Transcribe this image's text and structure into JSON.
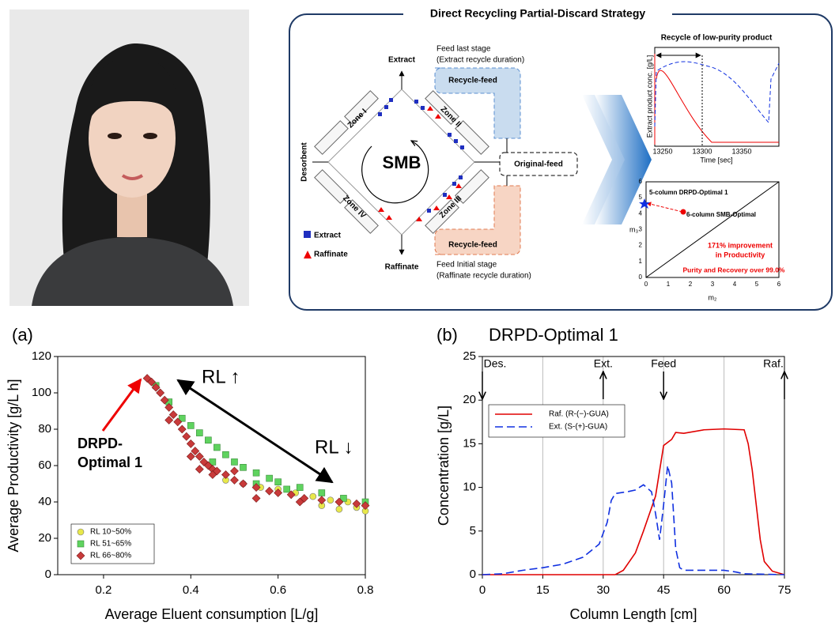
{
  "diagram": {
    "title": "Direct Recycling Partial-Discard Strategy",
    "extract_port": "Extract",
    "feed_last": [
      "Feed last stage",
      "(Extract recycle duration)"
    ],
    "recycle_feed_top": "Recycle-feed",
    "zones": [
      "Zone I",
      "Zone II",
      "Zone III",
      "Zone IV"
    ],
    "smb": "SMB",
    "desorbent": "Desorbent",
    "original_feed": "Original-feed",
    "recycle_feed_bottom": "Recycle-feed",
    "legend": [
      "Extract",
      "Raffinate"
    ],
    "raffinate_port": "Raffinate",
    "feed_initial": [
      "Feed Initial stage",
      "(Raffinate recycle duration)"
    ],
    "inset1": {
      "title": "Recycle of low-purity product",
      "ylabel": "Extract product conc. [g/L]",
      "xticks": [
        13250,
        13300,
        13350
      ],
      "xlabel": "Time [sec]"
    },
    "inset2": {
      "optimal1": "5-column DRPD-Optimal 1",
      "smb_optimal": "6-column SMB-Optimal",
      "improvement": [
        "171% improvement",
        "in Productivity"
      ],
      "purity": "Purity and Recovery over 99.0%",
      "yticks": [
        0,
        1,
        2,
        3,
        4,
        5,
        6
      ],
      "xticks": [
        0,
        1,
        2,
        3,
        4,
        5,
        6
      ],
      "ylabel": "m₃",
      "xlabel": "m₂"
    }
  },
  "chart_data": [
    {
      "type": "scatter",
      "panel": "(a)",
      "xlabel": "Average Eluent consumption [L/g]",
      "ylabel": "Average Productivity [g/L h]",
      "xlim": [
        0.095,
        0.8
      ],
      "ylim": [
        0,
        120
      ],
      "xticks": [
        0.2,
        0.4,
        0.6,
        0.8
      ],
      "yticks": [
        0,
        20,
        40,
        60,
        80,
        100,
        120
      ],
      "annotations": {
        "optimal": [
          "DRPD-",
          "Optimal 1"
        ],
        "rl_up": "RL ↑",
        "rl_down": "RL ↓"
      },
      "legend": "lower left",
      "series": [
        {
          "name": "RL 10~50%",
          "color": "#e8e84a",
          "marker": "circle",
          "x": [
            0.48,
            0.52,
            0.56,
            0.6,
            0.64,
            0.68,
            0.72,
            0.76,
            0.78,
            0.8,
            0.7,
            0.74
          ],
          "values": [
            52,
            50,
            48,
            47,
            45,
            43,
            41,
            40,
            37,
            35,
            38,
            36
          ]
        },
        {
          "name": "RL 51~65%",
          "color": "#5fd35f",
          "marker": "square",
          "x": [
            0.32,
            0.35,
            0.38,
            0.4,
            0.42,
            0.44,
            0.46,
            0.48,
            0.5,
            0.52,
            0.55,
            0.58,
            0.6,
            0.65,
            0.7,
            0.75,
            0.8,
            0.45,
            0.55,
            0.62
          ],
          "values": [
            104,
            95,
            86,
            82,
            78,
            74,
            70,
            66,
            62,
            59,
            56,
            53,
            51,
            48,
            45,
            42,
            40,
            62,
            50,
            47
          ]
        },
        {
          "name": "RL 66~80%",
          "color": "#c83a3a",
          "marker": "diamond",
          "x": [
            0.3,
            0.31,
            0.32,
            0.33,
            0.34,
            0.35,
            0.36,
            0.37,
            0.38,
            0.39,
            0.4,
            0.41,
            0.42,
            0.43,
            0.44,
            0.45,
            0.46,
            0.48,
            0.5,
            0.52,
            0.55,
            0.58,
            0.6,
            0.63,
            0.66,
            0.7,
            0.74,
            0.78,
            0.8,
            0.35,
            0.4,
            0.45,
            0.5,
            0.55,
            0.65,
            0.42
          ],
          "values": [
            108,
            106,
            103,
            100,
            96,
            92,
            88,
            84,
            80,
            76,
            72,
            68,
            65,
            62,
            60,
            58,
            57,
            55,
            52,
            50,
            48,
            46,
            45,
            44,
            42,
            41,
            40,
            39,
            38,
            85,
            65,
            55,
            57,
            42,
            40,
            58
          ]
        }
      ]
    },
    {
      "type": "line",
      "panel": "(b)",
      "title": "DRPD-Optimal 1",
      "xlabel": "Column Length [cm]",
      "ylabel": "Concentration [g/L]",
      "xlim": [
        0,
        75
      ],
      "ylim": [
        0,
        25
      ],
      "xticks": [
        0,
        15,
        30,
        45,
        60,
        75
      ],
      "yticks": [
        0,
        5,
        10,
        15,
        20,
        25
      ],
      "vgrid": [
        15,
        30,
        45,
        60
      ],
      "legend": "upper left",
      "annotations": [
        {
          "text": "Des.",
          "x": 0,
          "direction": "down"
        },
        {
          "text": "Ext.",
          "x": 30,
          "direction": "up"
        },
        {
          "text": "Feed",
          "x": 45,
          "direction": "down"
        },
        {
          "text": "Raf.",
          "x": 75,
          "direction": "up"
        }
      ],
      "series": [
        {
          "name": "Raf. (R-(−)-GUA)",
          "color": "#e00000",
          "dash": "solid",
          "x": [
            0,
            10,
            20,
            30,
            33,
            35,
            38,
            40,
            43,
            45,
            47,
            48,
            50,
            55,
            60,
            65,
            66,
            67,
            68,
            69,
            70,
            72,
            75
          ],
          "values": [
            0,
            0,
            0,
            0,
            0,
            0.5,
            2.5,
            5,
            9,
            14.8,
            15.5,
            16.3,
            16.2,
            16.6,
            16.7,
            16.6,
            15,
            12,
            8,
            4,
            1.5,
            0.4,
            0
          ]
        },
        {
          "name": "Ext. (S-(+)-GUA)",
          "color": "#1030e0",
          "dash": "dashed",
          "x": [
            0,
            5,
            10,
            15,
            20,
            25,
            29,
            31,
            32,
            33,
            36,
            38,
            40,
            42,
            43,
            44,
            45,
            46,
            47,
            48,
            49,
            50,
            55,
            60,
            63,
            65,
            70,
            75
          ],
          "values": [
            0,
            0.1,
            0.5,
            0.8,
            1.2,
            2,
            3.5,
            6,
            8.5,
            9.3,
            9.5,
            9.7,
            10.3,
            9.5,
            7,
            4,
            8,
            12.5,
            10.5,
            3,
            0.8,
            0.5,
            0.5,
            0.5,
            0.3,
            0.1,
            0.05,
            0
          ]
        }
      ]
    }
  ]
}
